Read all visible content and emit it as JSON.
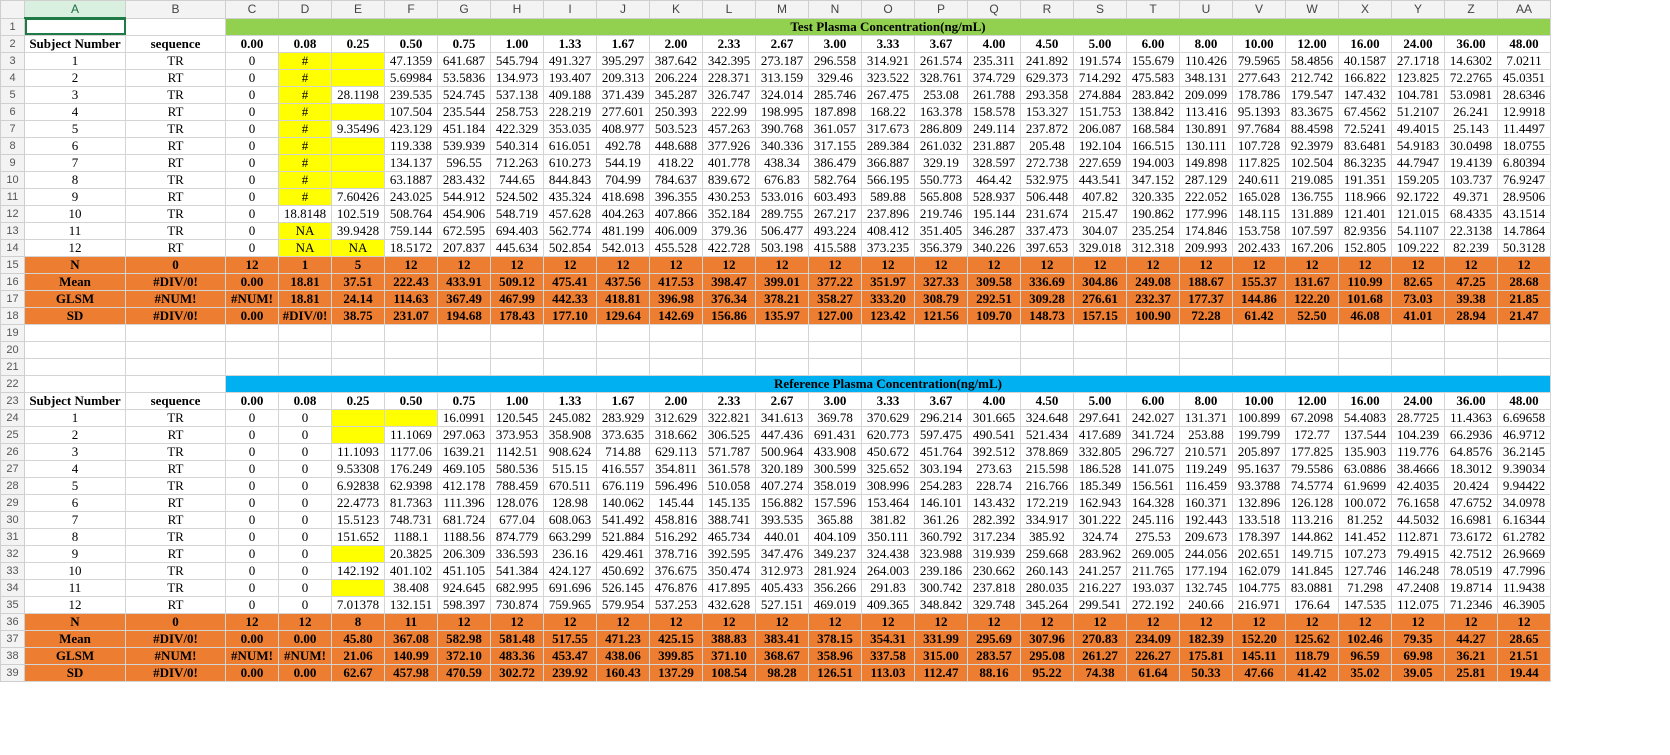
{
  "columns": [
    "",
    "A",
    "B",
    "C",
    "D",
    "E",
    "F",
    "G",
    "H",
    "I",
    "J",
    "K",
    "L",
    "M",
    "N",
    "O",
    "P",
    "Q",
    "R",
    "S",
    "T",
    "U",
    "V",
    "W",
    "X",
    "Y",
    "Z",
    "AA"
  ],
  "test": {
    "title": "Test Plasma Concentration(ng/mL)",
    "headers": [
      "Subject Number",
      "sequence",
      "0.00",
      "0.08",
      "0.25",
      "0.50",
      "0.75",
      "1.00",
      "1.33",
      "1.67",
      "2.00",
      "2.33",
      "2.67",
      "3.00",
      "3.33",
      "3.67",
      "4.00",
      "4.50",
      "5.00",
      "6.00",
      "8.00",
      "10.00",
      "12.00",
      "16.00",
      "24.00",
      "36.00",
      "48.00"
    ],
    "rows": [
      [
        "1",
        "TR",
        "0",
        "#",
        "",
        "47.1359",
        "641.687",
        "545.794",
        "491.327",
        "395.297",
        "387.642",
        "342.395",
        "273.187",
        "296.558",
        "314.921",
        "261.574",
        "235.311",
        "241.892",
        "191.574",
        "155.679",
        "110.426",
        "79.5965",
        "58.4856",
        "40.1587",
        "27.1718",
        "14.6302",
        "7.0211"
      ],
      [
        "2",
        "RT",
        "0",
        "#",
        "",
        "5.69984",
        "53.5836",
        "134.973",
        "193.407",
        "209.313",
        "206.224",
        "228.371",
        "313.159",
        "329.46",
        "323.522",
        "328.761",
        "374.729",
        "629.373",
        "714.292",
        "475.583",
        "348.131",
        "277.643",
        "212.742",
        "166.822",
        "123.825",
        "72.2765",
        "45.0351"
      ],
      [
        "3",
        "TR",
        "0",
        "#",
        "28.1198",
        "239.535",
        "524.745",
        "537.138",
        "409.188",
        "371.439",
        "345.287",
        "326.747",
        "324.014",
        "285.746",
        "267.475",
        "253.08",
        "261.788",
        "293.358",
        "274.884",
        "283.842",
        "209.099",
        "178.786",
        "179.547",
        "147.432",
        "104.781",
        "53.0981",
        "28.6346"
      ],
      [
        "4",
        "RT",
        "0",
        "#",
        "",
        "107.504",
        "235.544",
        "258.753",
        "228.219",
        "277.601",
        "250.393",
        "222.99",
        "198.995",
        "187.898",
        "168.22",
        "163.378",
        "158.578",
        "153.327",
        "151.753",
        "138.842",
        "113.416",
        "95.1393",
        "83.3675",
        "67.4562",
        "51.2107",
        "26.241",
        "12.9918"
      ],
      [
        "5",
        "TR",
        "0",
        "#",
        "9.35496",
        "423.129",
        "451.184",
        "422.329",
        "353.035",
        "408.977",
        "503.523",
        "457.263",
        "390.768",
        "361.057",
        "317.673",
        "286.809",
        "249.114",
        "237.872",
        "206.087",
        "168.584",
        "130.891",
        "97.7684",
        "88.4598",
        "72.5241",
        "49.4015",
        "25.143",
        "11.4497"
      ],
      [
        "6",
        "RT",
        "0",
        "#",
        "",
        "119.338",
        "539.939",
        "540.314",
        "616.051",
        "492.78",
        "448.688",
        "377.926",
        "340.336",
        "317.155",
        "289.384",
        "261.032",
        "231.887",
        "205.48",
        "192.104",
        "166.515",
        "130.111",
        "107.728",
        "92.3979",
        "83.6481",
        "54.9183",
        "30.0498",
        "18.0755"
      ],
      [
        "7",
        "RT",
        "0",
        "#",
        "",
        "134.137",
        "596.55",
        "712.263",
        "610.273",
        "544.19",
        "418.22",
        "401.778",
        "438.34",
        "386.479",
        "366.887",
        "329.19",
        "328.597",
        "272.738",
        "227.659",
        "194.003",
        "149.898",
        "117.825",
        "102.504",
        "86.3235",
        "44.7947",
        "19.4139",
        "6.80394"
      ],
      [
        "8",
        "TR",
        "0",
        "#",
        "",
        "63.1887",
        "283.432",
        "744.65",
        "844.843",
        "704.99",
        "784.637",
        "839.672",
        "676.83",
        "582.764",
        "566.195",
        "550.773",
        "464.42",
        "532.975",
        "443.541",
        "347.152",
        "287.129",
        "240.611",
        "219.085",
        "191.351",
        "159.205",
        "103.737",
        "76.9247"
      ],
      [
        "9",
        "RT",
        "0",
        "#",
        "7.60426",
        "243.025",
        "544.912",
        "524.502",
        "435.324",
        "418.698",
        "396.355",
        "430.253",
        "533.016",
        "603.493",
        "589.88",
        "565.808",
        "528.937",
        "506.448",
        "407.82",
        "320.335",
        "222.052",
        "165.028",
        "136.755",
        "118.966",
        "92.1722",
        "49.371",
        "28.9506"
      ],
      [
        "10",
        "TR",
        "0",
        "18.8148",
        "102.519",
        "508.764",
        "454.906",
        "548.719",
        "457.628",
        "404.263",
        "407.866",
        "352.184",
        "289.755",
        "267.217",
        "237.896",
        "219.746",
        "195.144",
        "231.674",
        "215.47",
        "190.862",
        "177.996",
        "148.115",
        "131.889",
        "121.401",
        "121.015",
        "68.4335",
        "43.1514"
      ],
      [
        "11",
        "TR",
        "0",
        "NA",
        "39.9428",
        "759.144",
        "672.595",
        "694.403",
        "562.774",
        "481.199",
        "406.009",
        "379.36",
        "506.477",
        "493.224",
        "408.412",
        "351.405",
        "346.287",
        "337.473",
        "304.07",
        "235.254",
        "174.846",
        "153.758",
        "107.597",
        "82.9356",
        "54.1107",
        "22.3138",
        "14.7864"
      ],
      [
        "12",
        "RT",
        "0",
        "NA",
        "NA",
        "18.5172",
        "207.837",
        "445.634",
        "502.854",
        "542.013",
        "455.528",
        "422.728",
        "503.198",
        "415.588",
        "373.235",
        "356.379",
        "340.226",
        "397.653",
        "329.018",
        "312.318",
        "209.993",
        "202.433",
        "167.206",
        "152.805",
        "109.222",
        "82.239",
        "50.3128"
      ]
    ],
    "stats": [
      [
        "N",
        "0",
        "12",
        "1",
        "5",
        "12",
        "12",
        "12",
        "12",
        "12",
        "12",
        "12",
        "12",
        "12",
        "12",
        "12",
        "12",
        "12",
        "12",
        "12",
        "12",
        "12",
        "12",
        "12",
        "12",
        "12",
        "12"
      ],
      [
        "Mean",
        "#DIV/0!",
        "0.00",
        "18.81",
        "37.51",
        "222.43",
        "433.91",
        "509.12",
        "475.41",
        "437.56",
        "417.53",
        "398.47",
        "399.01",
        "377.22",
        "351.97",
        "327.33",
        "309.58",
        "336.69",
        "304.86",
        "249.08",
        "188.67",
        "155.37",
        "131.67",
        "110.99",
        "82.65",
        "47.25",
        "28.68"
      ],
      [
        "GLSM",
        "#NUM!",
        "#NUM!",
        "18.81",
        "24.14",
        "114.63",
        "367.49",
        "467.99",
        "442.33",
        "418.81",
        "396.98",
        "376.34",
        "378.21",
        "358.27",
        "333.20",
        "308.79",
        "292.51",
        "309.28",
        "276.61",
        "232.37",
        "177.37",
        "144.86",
        "122.20",
        "101.68",
        "73.03",
        "39.38",
        "21.85"
      ],
      [
        "SD",
        "#DIV/0!",
        "0.00",
        "#DIV/0!",
        "38.75",
        "231.07",
        "194.68",
        "178.43",
        "177.10",
        "129.64",
        "142.69",
        "156.86",
        "135.97",
        "127.00",
        "123.42",
        "121.56",
        "109.70",
        "148.73",
        "157.15",
        "100.90",
        "72.28",
        "61.42",
        "52.50",
        "46.08",
        "41.01",
        "28.94",
        "21.47"
      ]
    ]
  },
  "reference": {
    "title": "Reference Plasma Concentration(ng/mL)",
    "headers": [
      "Subject Number",
      "sequence",
      "0.00",
      "0.08",
      "0.25",
      "0.50",
      "0.75",
      "1.00",
      "1.33",
      "1.67",
      "2.00",
      "2.33",
      "2.67",
      "3.00",
      "3.33",
      "3.67",
      "4.00",
      "4.50",
      "5.00",
      "6.00",
      "8.00",
      "10.00",
      "12.00",
      "16.00",
      "24.00",
      "36.00",
      "48.00"
    ],
    "rows": [
      [
        "1",
        "TR",
        "0",
        "0",
        "",
        "",
        "16.0991",
        "120.545",
        "245.082",
        "283.929",
        "312.629",
        "322.821",
        "341.613",
        "369.78",
        "370.629",
        "296.214",
        "301.665",
        "324.648",
        "297.641",
        "242.027",
        "131.371",
        "100.899",
        "67.2098",
        "54.4083",
        "28.7725",
        "11.4363",
        "6.69658"
      ],
      [
        "2",
        "RT",
        "0",
        "0",
        "",
        "11.1069",
        "297.063",
        "373.953",
        "358.908",
        "373.635",
        "318.662",
        "306.525",
        "447.436",
        "691.431",
        "620.773",
        "597.475",
        "490.541",
        "521.434",
        "417.689",
        "341.724",
        "253.88",
        "199.799",
        "172.77",
        "137.544",
        "104.239",
        "66.2936",
        "46.9712"
      ],
      [
        "3",
        "TR",
        "0",
        "0",
        "11.1093",
        "1177.06",
        "1639.21",
        "1142.51",
        "908.624",
        "714.88",
        "629.113",
        "571.787",
        "500.964",
        "433.908",
        "450.672",
        "451.764",
        "392.512",
        "378.869",
        "332.805",
        "296.727",
        "210.571",
        "205.897",
        "177.825",
        "135.903",
        "119.776",
        "64.8576",
        "36.2145"
      ],
      [
        "4",
        "RT",
        "0",
        "0",
        "9.53308",
        "176.249",
        "469.105",
        "580.536",
        "515.15",
        "416.557",
        "354.811",
        "361.578",
        "320.189",
        "300.599",
        "325.652",
        "303.194",
        "273.63",
        "215.598",
        "186.528",
        "141.075",
        "119.249",
        "95.1637",
        "79.5586",
        "63.0886",
        "38.4666",
        "18.3012",
        "9.39034"
      ],
      [
        "5",
        "TR",
        "0",
        "0",
        "6.92838",
        "62.9398",
        "412.178",
        "788.459",
        "670.511",
        "676.119",
        "596.496",
        "510.058",
        "407.274",
        "358.019",
        "308.996",
        "254.283",
        "228.74",
        "216.766",
        "185.349",
        "156.561",
        "116.459",
        "93.3788",
        "74.5774",
        "61.9699",
        "42.4035",
        "20.424",
        "9.94422"
      ],
      [
        "6",
        "RT",
        "0",
        "0",
        "22.4773",
        "81.7363",
        "111.396",
        "128.076",
        "128.98",
        "140.062",
        "145.44",
        "145.135",
        "156.882",
        "157.596",
        "153.464",
        "146.101",
        "143.432",
        "172.219",
        "162.943",
        "164.328",
        "160.371",
        "132.896",
        "126.128",
        "100.072",
        "76.1658",
        "47.6752",
        "34.0978"
      ],
      [
        "7",
        "RT",
        "0",
        "0",
        "15.5123",
        "748.731",
        "681.724",
        "677.04",
        "608.063",
        "541.492",
        "458.816",
        "388.741",
        "393.535",
        "365.88",
        "381.82",
        "361.26",
        "282.392",
        "334.917",
        "301.222",
        "245.116",
        "192.443",
        "133.518",
        "113.216",
        "81.252",
        "44.5032",
        "16.6981",
        "6.16344"
      ],
      [
        "8",
        "TR",
        "0",
        "0",
        "151.652",
        "1188.1",
        "1188.56",
        "874.779",
        "663.299",
        "521.884",
        "516.292",
        "465.734",
        "440.01",
        "404.109",
        "350.111",
        "360.792",
        "317.234",
        "385.92",
        "324.74",
        "275.53",
        "209.673",
        "178.397",
        "144.862",
        "141.452",
        "112.871",
        "73.6172",
        "61.2782"
      ],
      [
        "9",
        "RT",
        "0",
        "0",
        "",
        "20.3825",
        "206.309",
        "336.593",
        "236.16",
        "429.461",
        "378.716",
        "392.595",
        "347.476",
        "349.237",
        "324.438",
        "323.988",
        "319.939",
        "259.668",
        "283.962",
        "269.005",
        "244.056",
        "202.651",
        "149.715",
        "107.273",
        "79.4915",
        "42.7512",
        "26.9669"
      ],
      [
        "10",
        "TR",
        "0",
        "0",
        "142.192",
        "401.102",
        "451.105",
        "541.384",
        "424.127",
        "450.692",
        "376.675",
        "350.474",
        "312.973",
        "281.924",
        "264.003",
        "239.186",
        "230.662",
        "260.143",
        "241.257",
        "211.765",
        "177.194",
        "162.079",
        "141.845",
        "127.746",
        "146.248",
        "78.0519",
        "47.7996"
      ],
      [
        "11",
        "TR",
        "0",
        "0",
        "",
        "38.408",
        "924.645",
        "682.995",
        "691.696",
        "526.145",
        "476.876",
        "417.895",
        "405.433",
        "356.266",
        "291.83",
        "300.742",
        "237.818",
        "280.035",
        "216.227",
        "193.037",
        "132.745",
        "104.775",
        "83.0881",
        "71.298",
        "47.2408",
        "19.8714",
        "11.9438"
      ],
      [
        "12",
        "RT",
        "0",
        "0",
        "7.01378",
        "132.151",
        "598.397",
        "730.874",
        "759.965",
        "579.954",
        "537.253",
        "432.628",
        "527.151",
        "469.019",
        "409.365",
        "348.842",
        "329.748",
        "345.264",
        "299.541",
        "272.192",
        "240.66",
        "216.971",
        "176.64",
        "147.535",
        "112.075",
        "71.2346",
        "46.3905"
      ]
    ],
    "stats": [
      [
        "N",
        "0",
        "12",
        "12",
        "8",
        "11",
        "12",
        "12",
        "12",
        "12",
        "12",
        "12",
        "12",
        "12",
        "12",
        "12",
        "12",
        "12",
        "12",
        "12",
        "12",
        "12",
        "12",
        "12",
        "12",
        "12",
        "12"
      ],
      [
        "Mean",
        "#DIV/0!",
        "0.00",
        "0.00",
        "45.80",
        "367.08",
        "582.98",
        "581.48",
        "517.55",
        "471.23",
        "425.15",
        "388.83",
        "383.41",
        "378.15",
        "354.31",
        "331.99",
        "295.69",
        "307.96",
        "270.83",
        "234.09",
        "182.39",
        "152.20",
        "125.62",
        "102.46",
        "79.35",
        "44.27",
        "28.65"
      ],
      [
        "GLSM",
        "#NUM!",
        "#NUM!",
        "#NUM!",
        "21.06",
        "140.99",
        "372.10",
        "483.36",
        "453.47",
        "438.06",
        "399.85",
        "371.10",
        "368.67",
        "358.96",
        "337.58",
        "315.00",
        "283.57",
        "295.08",
        "261.27",
        "226.27",
        "175.81",
        "145.11",
        "118.79",
        "96.59",
        "69.98",
        "36.21",
        "21.51"
      ],
      [
        "SD",
        "#DIV/0!",
        "0.00",
        "0.00",
        "62.67",
        "457.98",
        "470.59",
        "302.72",
        "239.92",
        "160.43",
        "137.29",
        "108.54",
        "98.28",
        "126.51",
        "113.03",
        "112.47",
        "88.16",
        "95.22",
        "74.38",
        "61.64",
        "50.33",
        "47.66",
        "41.42",
        "35.02",
        "39.05",
        "25.81",
        "19.44"
      ]
    ]
  },
  "colors": {
    "test_banner": "#92d050",
    "ref_banner": "#00b0f0",
    "stats_fill": "#ed7d31",
    "missing_fill": "#ffff00"
  }
}
